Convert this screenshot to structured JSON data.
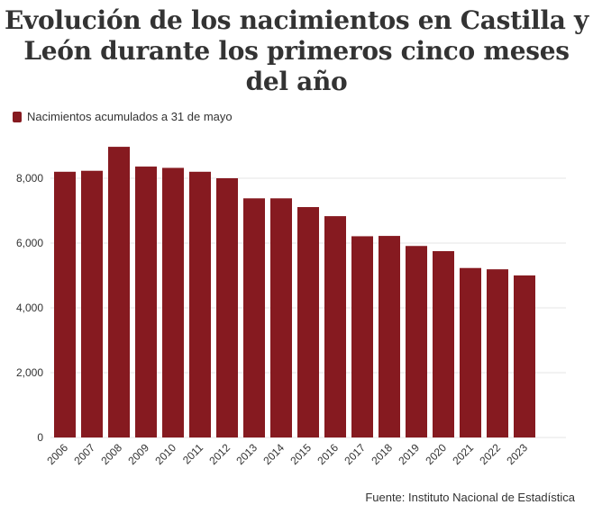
{
  "chart_data": {
    "type": "bar",
    "title": "Evolución de los nacimientos en Castilla y León durante los primeros cinco meses del año",
    "legend": [
      {
        "name": "Nacimientos acumulados a 31 de mayo",
        "color": "#861a20"
      }
    ],
    "categories": [
      "2006",
      "2007",
      "2008",
      "2009",
      "2010",
      "2011",
      "2012",
      "2013",
      "2014",
      "2015",
      "2016",
      "2017",
      "2018",
      "2019",
      "2020",
      "2021",
      "2022",
      "2023"
    ],
    "series": [
      {
        "name": "Nacimientos acumulados a 31 de mayo",
        "values": [
          8200,
          8230,
          8970,
          8360,
          8320,
          8200,
          8000,
          7380,
          7380,
          7110,
          6830,
          6210,
          6220,
          5910,
          5750,
          5230,
          5190,
          5000
        ]
      }
    ],
    "ylim": [
      0,
      9000
    ],
    "yticks": [
      0,
      2000,
      4000,
      6000,
      8000
    ],
    "ytick_labels": [
      "0",
      "2,000",
      "4,000",
      "6,000",
      "8,000"
    ],
    "grid": true,
    "legend_position": "top-left"
  },
  "source": "Fuente: Instituto Nacional de Estadística",
  "colors": {
    "bar": "#861a20",
    "grid": "#e6e6e6",
    "text": "#333333"
  }
}
